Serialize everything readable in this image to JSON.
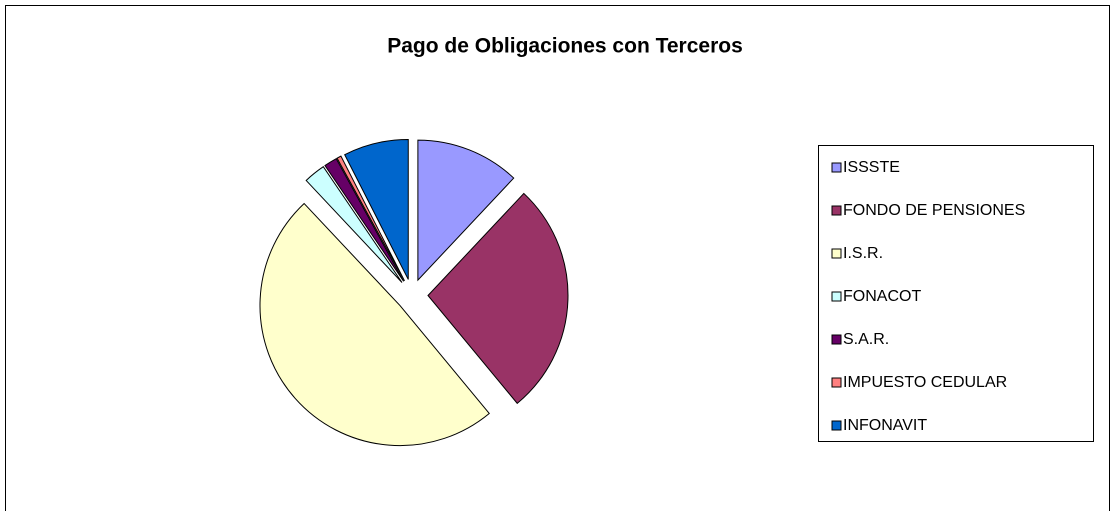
{
  "chart_data": {
    "type": "pie",
    "title": "Pago de Obligaciones con Terceros",
    "categories": [
      "ISSSTE",
      "FONDO DE PENSIONES",
      "I.S.R.",
      "FONACOT",
      "S.A.R.",
      "IMPUESTO CEDULAR",
      "INFONAVIT"
    ],
    "values": [
      12,
      27,
      49,
      2.5,
      1.5,
      0.5,
      7.5
    ],
    "colors": [
      "#9999ff",
      "#993366",
      "#ffffcc",
      "#ccffff",
      "#660066",
      "#ff8080",
      "#0066cc"
    ],
    "legend": "right"
  }
}
